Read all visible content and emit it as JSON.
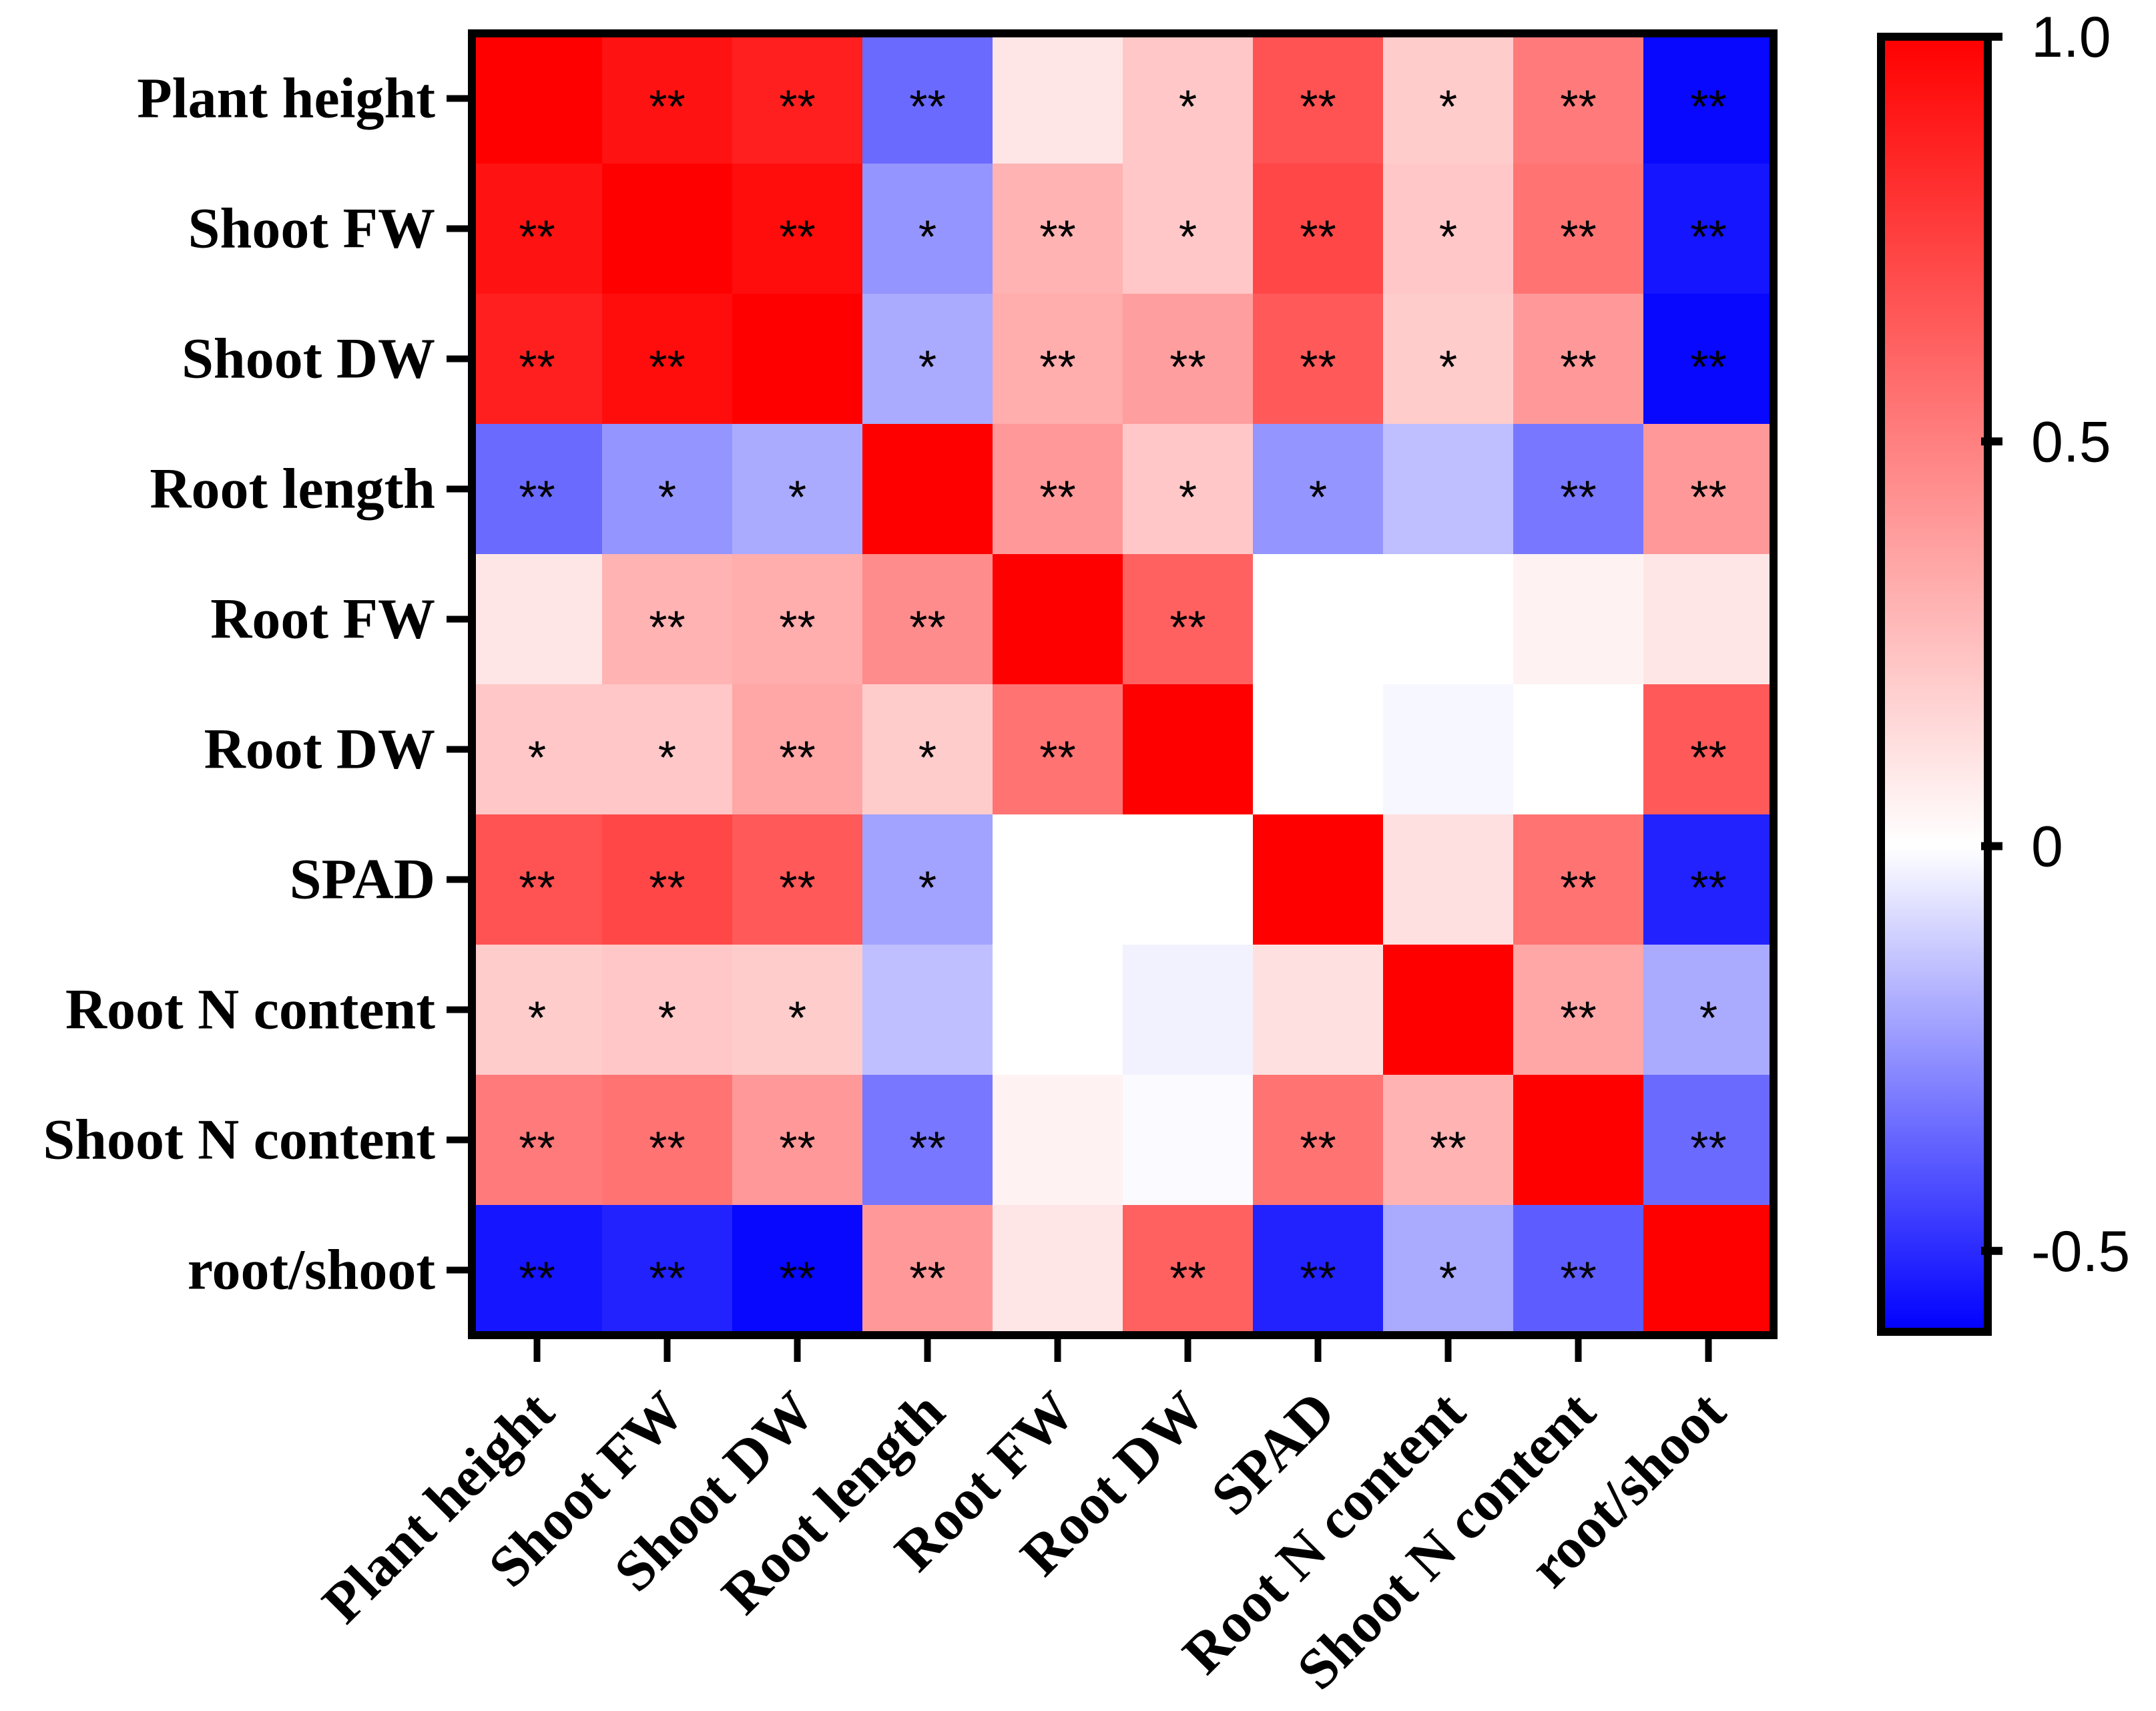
{
  "chart_data": {
    "type": "heatmap",
    "title": "",
    "xlabel": "",
    "ylabel": "",
    "rows": [
      "Plant height",
      "Shoot FW",
      "Shoot DW",
      "Root length",
      "Root FW",
      "Root DW",
      "SPAD",
      "Root N content",
      "Shoot N content",
      "root/shoot"
    ],
    "columns": [
      "Plant height",
      "Shoot FW",
      "Shoot DW",
      "Root length",
      "Root FW",
      "Root DW",
      "SPAD",
      "Root N content",
      "Shoot N content",
      "root/shoot"
    ],
    "values": [
      [
        1.0,
        0.93,
        0.88,
        -0.35,
        0.1,
        0.22,
        0.68,
        0.2,
        0.52,
        -0.58
      ],
      [
        0.93,
        1.0,
        0.95,
        -0.25,
        0.3,
        0.22,
        0.72,
        0.22,
        0.55,
        -0.55
      ],
      [
        0.88,
        0.95,
        1.0,
        -0.2,
        0.32,
        0.38,
        0.65,
        0.2,
        0.4,
        -0.58
      ],
      [
        -0.35,
        -0.25,
        -0.2,
        1.0,
        0.4,
        0.22,
        -0.25,
        -0.15,
        -0.32,
        0.4
      ],
      [
        0.1,
        0.3,
        0.32,
        0.45,
        1.0,
        0.62,
        0.0,
        0.0,
        0.05,
        0.1
      ],
      [
        0.22,
        0.22,
        0.35,
        0.2,
        0.55,
        1.0,
        0.0,
        -0.02,
        0.0,
        0.65
      ],
      [
        0.68,
        0.72,
        0.65,
        -0.22,
        0.0,
        0.0,
        1.0,
        0.12,
        0.55,
        -0.52
      ],
      [
        0.2,
        0.22,
        0.2,
        -0.15,
        0.0,
        -0.03,
        0.12,
        1.0,
        0.35,
        -0.2
      ],
      [
        0.52,
        0.55,
        0.4,
        -0.32,
        0.05,
        -0.01,
        0.55,
        0.3,
        1.0,
        -0.35
      ],
      [
        -0.55,
        -0.52,
        -0.58,
        0.4,
        0.1,
        0.62,
        -0.52,
        -0.2,
        -0.38,
        1.0
      ]
    ],
    "significance": [
      [
        "",
        "**",
        "**",
        "**",
        "",
        "*",
        "**",
        "*",
        "**",
        "**"
      ],
      [
        "**",
        "",
        "**",
        "*",
        "**",
        "*",
        "**",
        "*",
        "**",
        "**"
      ],
      [
        "**",
        "**",
        "",
        "*",
        "**",
        "**",
        "**",
        "*",
        "**",
        "**"
      ],
      [
        "**",
        "*",
        "*",
        "",
        "**",
        "*",
        "*",
        "",
        "**",
        "**"
      ],
      [
        "",
        "**",
        "**",
        "**",
        "",
        "**",
        "",
        "",
        "",
        ""
      ],
      [
        "*",
        "*",
        "**",
        "*",
        "**",
        "",
        "",
        "",
        "",
        "**"
      ],
      [
        "**",
        "**",
        "**",
        "*",
        "",
        "",
        "",
        "",
        "**",
        "**"
      ],
      [
        "*",
        "*",
        "*",
        "",
        "",
        "",
        "",
        "",
        "**",
        "*"
      ],
      [
        "**",
        "**",
        "**",
        "**",
        "",
        "",
        "**",
        "**",
        "",
        "**"
      ],
      [
        "**",
        "**",
        "**",
        "**",
        "",
        "**",
        "**",
        "*",
        "**",
        ""
      ]
    ],
    "colorbar": {
      "min": -0.6,
      "max": 1.0,
      "ticks": [
        1.0,
        0.5,
        0,
        -0.5
      ],
      "tick_labels": [
        "1.0",
        "0.5",
        "0",
        "-0.5"
      ],
      "colors": {
        "negative": "#0000ff",
        "zero": "#ffffff",
        "positive": "#ff0000"
      }
    }
  }
}
